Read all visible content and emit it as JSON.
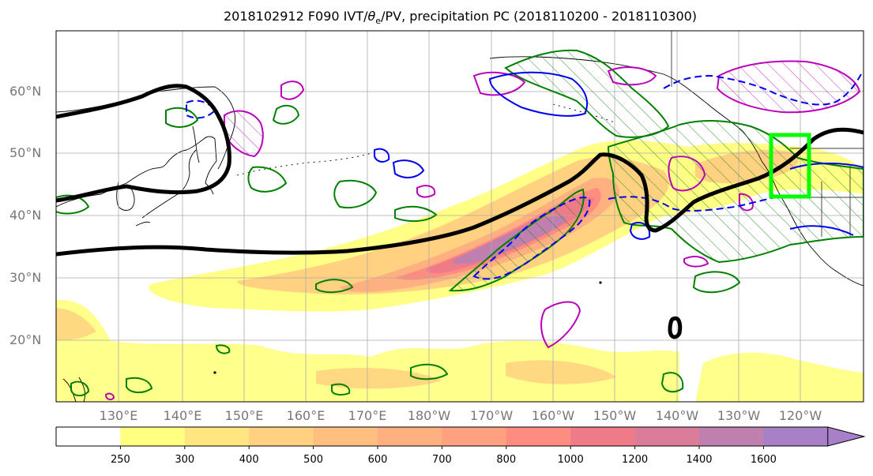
{
  "title": {
    "prefix": "2018102912 F090 IVT/",
    "theta": "θ",
    "theta_sub": "e",
    "suffix": "/PV, precipitation PC (2018110200 - 2018110300)"
  },
  "lat_labels": [
    "60°N",
    "50°N",
    "40°N",
    "30°N",
    "20°N"
  ],
  "lon_labels": [
    "130°E",
    "140°E",
    "150°E",
    "160°E",
    "170°E",
    "180°W",
    "170°W",
    "160°W",
    "150°W",
    "140°W",
    "130°W",
    "120°W"
  ],
  "colorbar": {
    "ticks": [
      "250",
      "300",
      "400",
      "500",
      "600",
      "700",
      "800",
      "1000",
      "1200",
      "1400",
      "1600"
    ],
    "colors": [
      "#ffffff",
      "#ffff80",
      "#ffe680",
      "#ffd180",
      "#ffbf80",
      "#ffb080",
      "#ffa080",
      "#ff8c80",
      "#ef7a88",
      "#db7d9a",
      "#bf80b0",
      "#a880c8"
    ],
    "extend": "max"
  },
  "colors": {
    "ivt_contour": "#000000",
    "dashed": "#0000ee",
    "solid_blue": "#0000ee",
    "green": "#008000",
    "magenta": "#bb00bb",
    "box": "#00ff00",
    "grid": "#aaaaaa"
  }
}
